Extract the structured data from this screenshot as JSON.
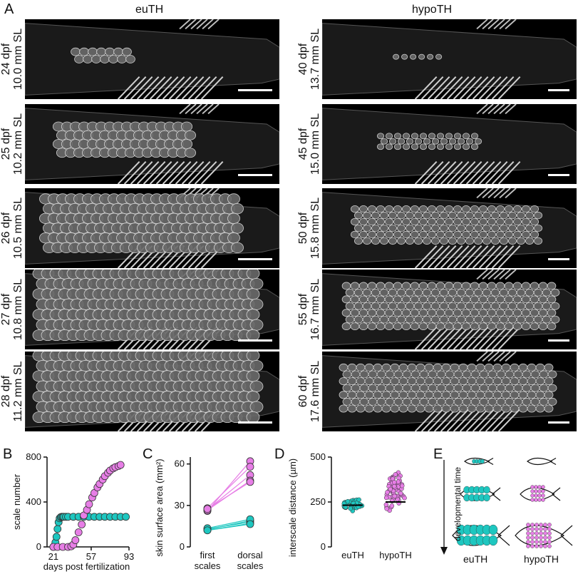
{
  "panel_a": {
    "letter": "A",
    "left_title": "euTH",
    "right_title": "hypoTH",
    "left_panels": [
      {
        "dpf": "24 dpf",
        "sl": "10.0 mm SL",
        "density": 0.15
      },
      {
        "dpf": "25 dpf",
        "sl": "10.2 mm SL",
        "density": 0.55
      },
      {
        "dpf": "26 dpf",
        "sl": "10.5 mm SL",
        "density": 0.85
      },
      {
        "dpf": "27 dpf",
        "sl": "10.8 mm SL",
        "density": 1.0
      },
      {
        "dpf": "28 dpf",
        "sl": "11.2 mm SL",
        "density": 1.0
      }
    ],
    "right_panels": [
      {
        "dpf": "40 dpf",
        "sl": "13.7 mm SL",
        "density": 0.08
      },
      {
        "dpf": "45 dpf",
        "sl": "15.0 mm SL",
        "density": 0.35
      },
      {
        "dpf": "50 dpf",
        "sl": "15.8 mm SL",
        "density": 0.8
      },
      {
        "dpf": "55 dpf",
        "sl": "16.7 mm SL",
        "density": 0.95
      },
      {
        "dpf": "60 dpf",
        "sl": "17.6 mm SL",
        "density": 1.0
      }
    ]
  },
  "panel_b": {
    "letter": "B"
  },
  "panel_c": {
    "letter": "C"
  },
  "panel_d": {
    "letter": "D"
  },
  "panel_e": {
    "letter": "E",
    "axis_label": "developmental time",
    "left_label": "euTH",
    "right_label": "hypoTH"
  },
  "colors": {
    "euTH": "#1ec7c0",
    "hypoTH": "#e77ee6",
    "stroke": "#333333"
  },
  "chart_data": [
    {
      "type": "scatter",
      "xlabel": "days post fertilization",
      "ylabel": "scale number",
      "xticks": [
        21,
        57,
        93
      ],
      "yticks": [
        0,
        400,
        800
      ],
      "xlim": [
        15,
        93
      ],
      "ylim": [
        0,
        800
      ],
      "series": [
        {
          "name": "euTH",
          "x": [
            21,
            22,
            23,
            24,
            25,
            26,
            27,
            28,
            29,
            30,
            31,
            33,
            35,
            40,
            45,
            50,
            55,
            60,
            65,
            70,
            75,
            80,
            85,
            90
          ],
          "values": [
            0,
            10,
            40,
            90,
            160,
            220,
            255,
            265,
            268,
            268,
            268,
            268,
            268,
            268,
            268,
            268,
            268,
            268,
            268,
            268,
            268,
            268,
            268,
            268
          ]
        },
        {
          "name": "hypoTH",
          "x": [
            21,
            25,
            30,
            35,
            38,
            40,
            42,
            45,
            48,
            50,
            53,
            55,
            58,
            60,
            63,
            65,
            68,
            70,
            73,
            75,
            78,
            80,
            83,
            85
          ],
          "values": [
            0,
            0,
            0,
            0,
            5,
            20,
            60,
            130,
            200,
            280,
            330,
            380,
            440,
            480,
            530,
            560,
            600,
            630,
            660,
            680,
            700,
            710,
            720,
            730
          ]
        }
      ]
    },
    {
      "type": "scatter",
      "ylabel": "skin surface area (mm²)",
      "categories": [
        "first scales",
        "dorsal scales"
      ],
      "yticks": [
        0,
        30,
        60
      ],
      "ylim": [
        0,
        65
      ],
      "series": [
        {
          "name": "euTH",
          "pairs": [
            [
              12,
              17
            ],
            [
              13,
              18
            ],
            [
              12.5,
              19
            ],
            [
              13.5,
              20
            ],
            [
              12,
              16.5
            ]
          ]
        },
        {
          "name": "hypoTH",
          "pairs": [
            [
              26,
              62
            ],
            [
              28,
              58
            ],
            [
              27,
              52
            ],
            [
              26.5,
              48
            ],
            [
              27.5,
              47
            ]
          ]
        }
      ]
    },
    {
      "type": "scatter",
      "ylabel": "interscale distance (µm)",
      "categories": [
        "euTH",
        "hypoTH"
      ],
      "yticks": [
        0,
        250,
        500
      ],
      "ylim": [
        0,
        500
      ],
      "series": [
        {
          "name": "euTH",
          "mean": 232,
          "min": 190,
          "max": 285
        },
        {
          "name": "hypoTH",
          "mean": 250,
          "min": 150,
          "max": 475
        }
      ]
    }
  ]
}
